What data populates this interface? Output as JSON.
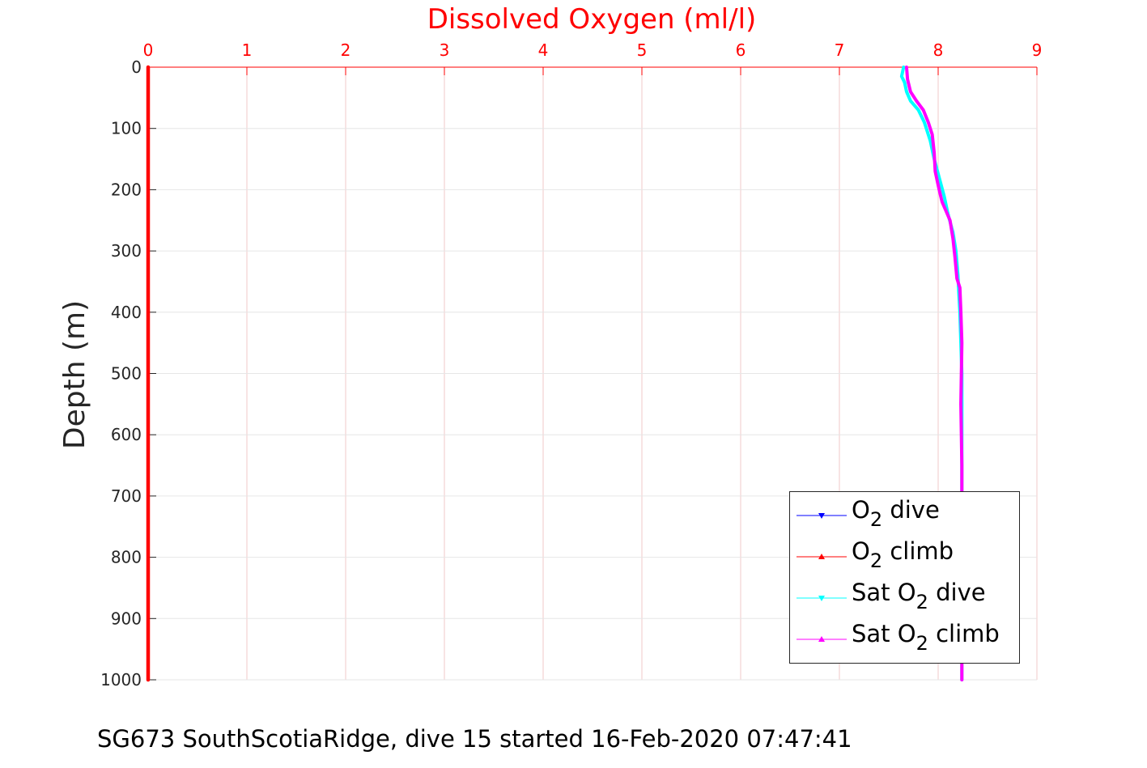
{
  "chart_data": {
    "type": "line",
    "title": "Dissolved Oxygen (ml/l)",
    "xlabel": "Dissolved Oxygen (ml/l)",
    "ylabel": "Depth (m)",
    "xlim": [
      0,
      9
    ],
    "ylim": [
      0,
      1000
    ],
    "y_reversed": true,
    "x_axis_position": "top",
    "x_ticks": [
      "0",
      "1",
      "2",
      "3",
      "4",
      "5",
      "6",
      "7",
      "8",
      "9"
    ],
    "y_ticks": [
      "0",
      "100",
      "200",
      "300",
      "400",
      "500",
      "600",
      "700",
      "800",
      "900",
      "1000"
    ],
    "grid": true,
    "legend_position": "bottom-right",
    "colors": {
      "axis_x": "#ff0000",
      "axis_y": "#262626",
      "grid": "#e6e6e6",
      "grid_x": "#f0c8c8"
    },
    "series": [
      {
        "name": "O2 dive",
        "legend": {
          "pre": "O",
          "sub": "2",
          "post": " dive"
        },
        "color": "#0000ff",
        "x": [
          0,
          0
        ],
        "y": [
          0,
          1000
        ]
      },
      {
        "name": "O2 climb",
        "legend": {
          "pre": "O",
          "sub": "2",
          "post": " climb"
        },
        "color": "#ff0000",
        "x": [
          0,
          0
        ],
        "y": [
          0,
          1000
        ]
      },
      {
        "name": "Sat O2 dive",
        "legend": {
          "pre": "Sat O",
          "sub": "2",
          "post": " dive"
        },
        "color": "#00ffff",
        "x": [
          7.65,
          7.63,
          7.66,
          7.68,
          7.72,
          7.8,
          7.86,
          7.92,
          7.96,
          8.01,
          8.06,
          8.1,
          8.15,
          8.18,
          8.2,
          8.22,
          8.23,
          8.24,
          8.24,
          8.24,
          8.24,
          8.24
        ],
        "y": [
          0,
          15,
          25,
          40,
          55,
          70,
          90,
          120,
          150,
          180,
          210,
          240,
          270,
          300,
          340,
          400,
          450,
          500,
          600,
          700,
          800,
          1000
        ]
      },
      {
        "name": "Sat O2 climb",
        "legend": {
          "pre": "Sat O",
          "sub": "2",
          "post": " climb"
        },
        "color": "#ff00ff",
        "x": [
          7.68,
          7.69,
          7.72,
          7.78,
          7.85,
          7.9,
          7.94,
          7.96,
          7.97,
          8.01,
          8.04,
          8.08,
          8.12,
          8.15,
          8.17,
          8.19,
          8.22,
          8.23,
          8.24,
          8.23,
          8.24,
          8.24,
          8.24
        ],
        "y": [
          0,
          20,
          40,
          55,
          70,
          90,
          110,
          140,
          170,
          200,
          220,
          235,
          250,
          280,
          310,
          345,
          360,
          400,
          450,
          550,
          650,
          800,
          1000
        ]
      }
    ]
  },
  "caption": "SG673 SouthScotiaRidge, dive 15 started 16-Feb-2020 07:47:41"
}
